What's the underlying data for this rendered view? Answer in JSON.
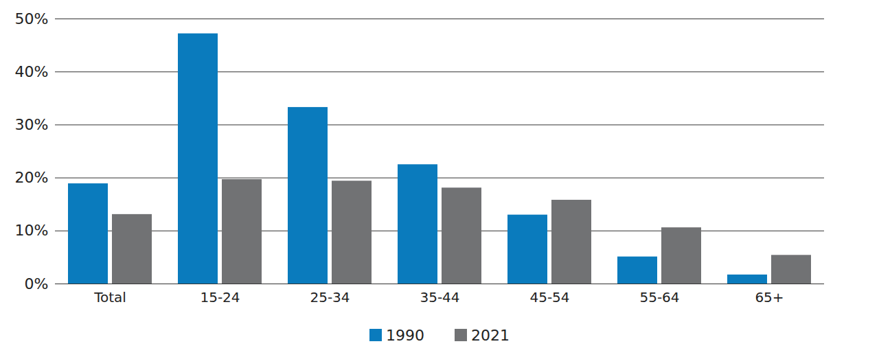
{
  "chart_data": {
    "type": "bar",
    "categories": [
      "Total",
      "15-24",
      "25-34",
      "35-44",
      "45-54",
      "55-64",
      "65+"
    ],
    "series": [
      {
        "name": "1990",
        "color": "#0a7bbd",
        "values": [
          18.9,
          47.2,
          33.3,
          22.5,
          13.0,
          5.1,
          1.7
        ]
      },
      {
        "name": "2021",
        "color": "#717274",
        "values": [
          13.1,
          19.7,
          19.4,
          18.1,
          15.8,
          10.6,
          5.4
        ]
      }
    ],
    "ylim": [
      0,
      50
    ],
    "yticks": [
      {
        "value": 0,
        "label": "0%"
      },
      {
        "value": 10,
        "label": "10%"
      },
      {
        "value": 20,
        "label": "20%"
      },
      {
        "value": 30,
        "label": "30%"
      },
      {
        "value": 40,
        "label": "40%"
      },
      {
        "value": 50,
        "label": "50%"
      }
    ],
    "grid": true,
    "legend": "bottom"
  }
}
